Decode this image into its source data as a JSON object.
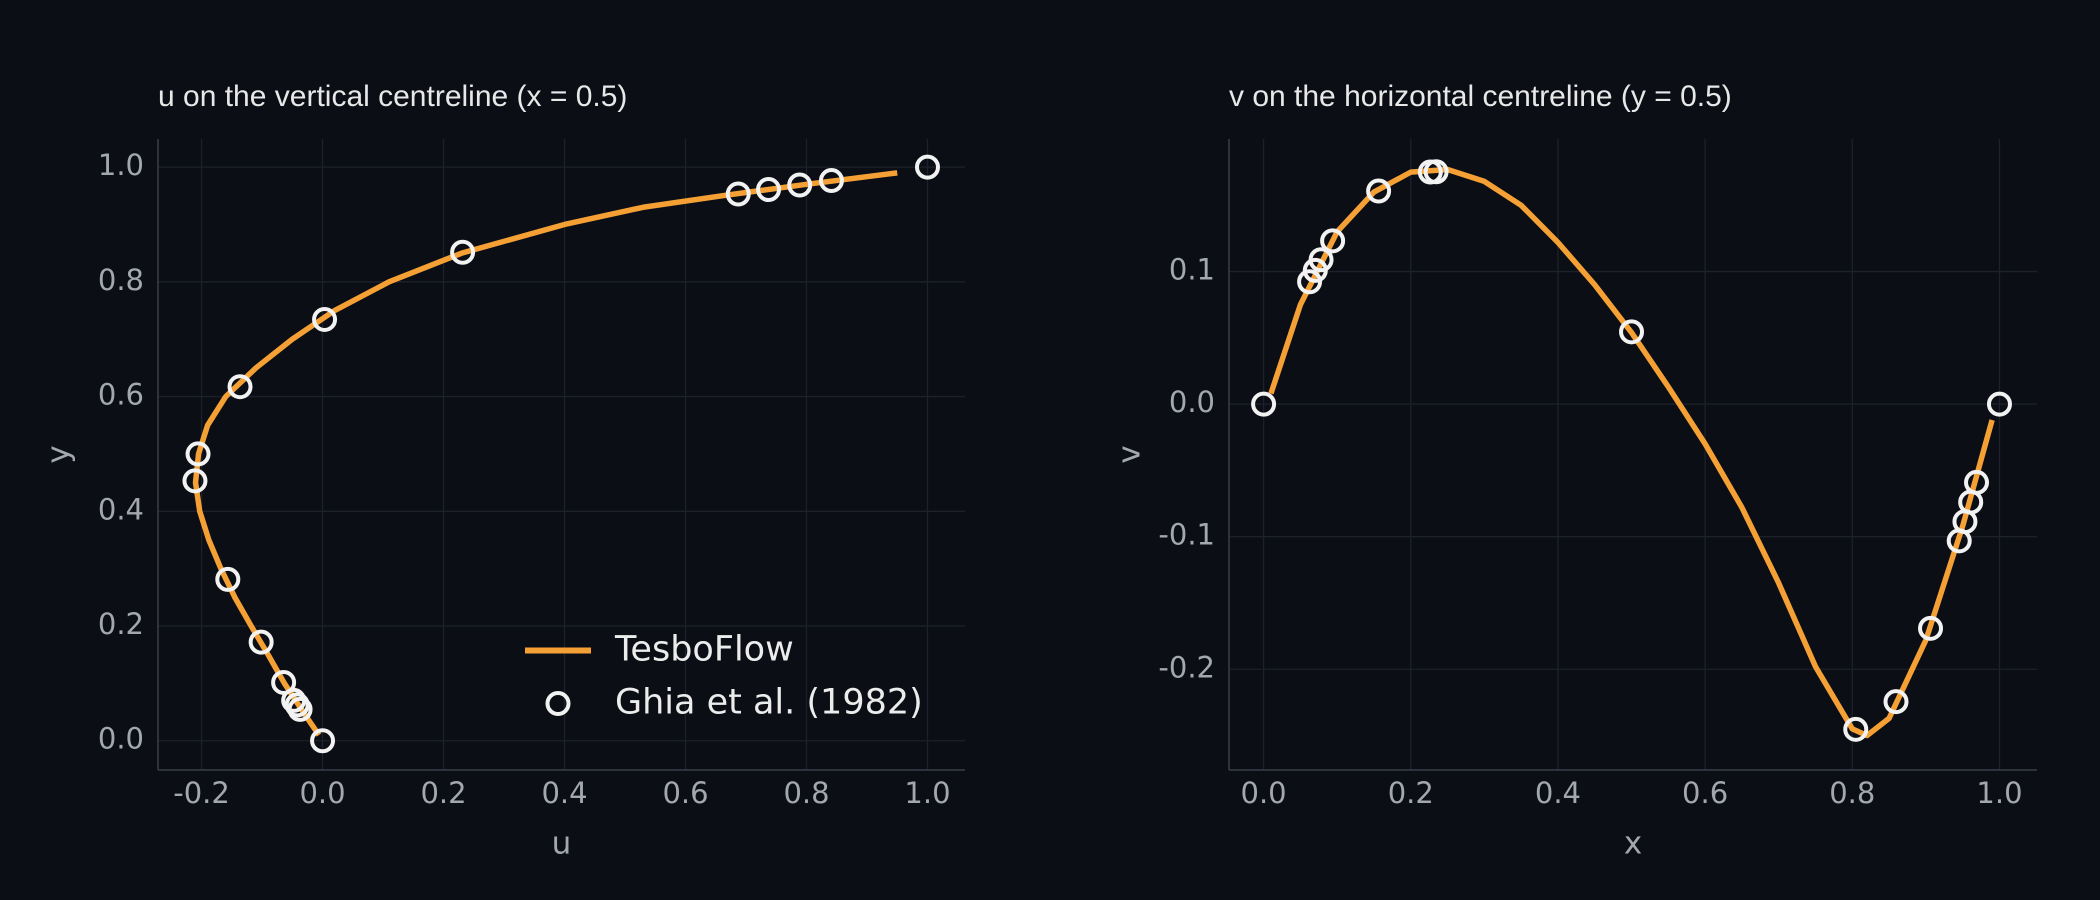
{
  "chart_data": [
    {
      "type": "line",
      "title": "u on the vertical centreline  (x = 0.5)",
      "xlabel": "u",
      "ylabel": "y",
      "xlim": [
        -0.272,
        1.062
      ],
      "ylim": [
        -0.051,
        1.049
      ],
      "xticks": [
        {
          "value": -0.2,
          "label": "-0.2"
        },
        {
          "value": 0,
          "label": "0.0"
        },
        {
          "value": 0.2,
          "label": "0.2"
        },
        {
          "value": 0.4,
          "label": "0.4"
        },
        {
          "value": 0.6,
          "label": "0.6"
        },
        {
          "value": 0.8,
          "label": "0.8"
        },
        {
          "value": 1,
          "label": "1.0"
        }
      ],
      "yticks": [
        {
          "value": 0,
          "label": "0.0"
        },
        {
          "value": 0.2,
          "label": "0.2"
        },
        {
          "value": 0.4,
          "label": "0.4"
        },
        {
          "value": 0.6,
          "label": "0.6"
        },
        {
          "value": 0.8,
          "label": "0.8"
        },
        {
          "value": 1,
          "label": "1.0"
        }
      ],
      "grid": true,
      "legend": "lower right",
      "series": [
        {
          "name": "TesboFlow",
          "color": "#f5a035",
          "style": "line",
          "x": [
            -0.006,
            -0.032,
            -0.063,
            -0.09,
            -0.118,
            -0.145,
            -0.168,
            -0.188,
            -0.203,
            -0.21,
            -0.205,
            -0.19,
            -0.16,
            -0.11,
            -0.05,
            0.02,
            0.11,
            0.23,
            0.4,
            0.53,
            0.66,
            0.8,
            0.95
          ],
          "values": [
            0.01,
            0.05,
            0.1,
            0.15,
            0.2,
            0.25,
            0.3,
            0.35,
            0.4,
            0.45,
            0.5,
            0.55,
            0.6,
            0.65,
            0.7,
            0.75,
            0.8,
            0.85,
            0.9,
            0.93,
            0.95,
            0.97,
            0.99
          ]
        },
        {
          "name": "Ghia et al. (1982)",
          "color": "#f2f2f2",
          "style": "marker",
          "x": [
            1,
            0.84123,
            0.78871,
            0.73722,
            0.68717,
            0.23151,
            0.00332,
            -0.13641,
            -0.20581,
            -0.2109,
            -0.15662,
            -0.1015,
            -0.06434,
            -0.04775,
            -0.04192,
            -0.03717,
            0
          ],
          "values": [
            1,
            0.9766,
            0.9688,
            0.9609,
            0.9531,
            0.8516,
            0.7344,
            0.6172,
            0.5,
            0.4531,
            0.2813,
            0.1719,
            0.1016,
            0.0703,
            0.0625,
            0.0547,
            0
          ]
        }
      ]
    },
    {
      "type": "line",
      "title": "v on the horizontal centreline  (y = 0.5)",
      "xlabel": "x",
      "ylabel": "v",
      "xlim": [
        -0.047,
        1.051
      ],
      "ylim": [
        -0.276,
        0.2
      ],
      "xticks": [
        {
          "value": 0,
          "label": "0.0"
        },
        {
          "value": 0.2,
          "label": "0.2"
        },
        {
          "value": 0.4,
          "label": "0.4"
        },
        {
          "value": 0.6,
          "label": "0.6"
        },
        {
          "value": 0.8,
          "label": "0.8"
        },
        {
          "value": 1,
          "label": "1.0"
        }
      ],
      "yticks": [
        {
          "value": -0.2,
          "label": "-0.2"
        },
        {
          "value": -0.1,
          "label": "-0.1"
        },
        {
          "value": 0,
          "label": "0.0"
        },
        {
          "value": 0.1,
          "label": "0.1"
        }
      ],
      "grid": true,
      "series": [
        {
          "color": "#f5a035",
          "style": "line",
          "x": [
            0.01,
            0.05,
            0.1,
            0.15,
            0.2,
            0.25,
            0.3,
            0.35,
            0.4,
            0.45,
            0.5,
            0.55,
            0.6,
            0.65,
            0.7,
            0.75,
            0.8,
            0.82,
            0.85,
            0.9,
            0.95,
            0.99
          ],
          "values": [
            0.008,
            0.075,
            0.13,
            0.16,
            0.175,
            0.177,
            0.168,
            0.15,
            0.122,
            0.09,
            0.054,
            0.013,
            -0.03,
            -0.078,
            -0.135,
            -0.198,
            -0.245,
            -0.25,
            -0.237,
            -0.178,
            -0.092,
            -0.012
          ]
        },
        {
          "color": "#f2f2f2",
          "style": "marker",
          "x": [
            0,
            0.0625,
            0.0703,
            0.0781,
            0.0938,
            0.1563,
            0.2266,
            0.2344,
            0.5,
            0.8047,
            0.8594,
            0.9063,
            0.9453,
            0.9531,
            0.9609,
            0.9688,
            1
          ],
          "values": [
            0,
            0.09233,
            0.10091,
            0.1089,
            0.12317,
            0.16077,
            0.17507,
            0.17527,
            0.05454,
            -0.24533,
            -0.22445,
            -0.16914,
            -0.10313,
            -0.08864,
            -0.07391,
            -0.05906,
            0
          ]
        }
      ]
    }
  ]
}
